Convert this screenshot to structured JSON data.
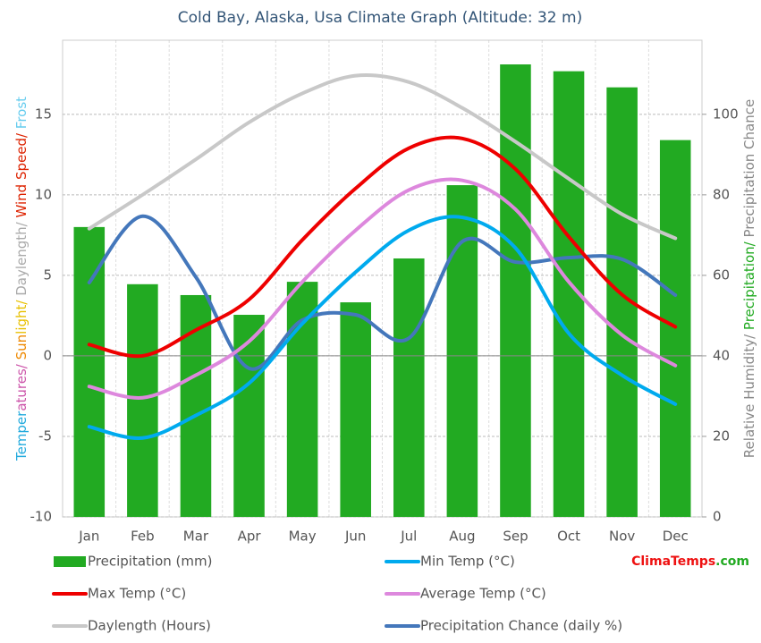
{
  "chart_data": {
    "type": "combo",
    "title": "Cold Bay, Alaska, Usa Climate Graph (Altitude: 32 m)",
    "y_label_parts": [
      {
        "text": "Temper",
        "color": "#22aadd"
      },
      {
        "text": "atures/",
        "color": "#cc55aa"
      },
      {
        "text": " Sun",
        "color": "#ee8800"
      },
      {
        "text": "light/",
        "color": "#e8c000"
      },
      {
        "text": " Daylength/",
        "color": "#aaaaaa"
      },
      {
        "text": " Wind Speed/",
        "color": "#dd2200"
      },
      {
        "text": " Frost",
        "color": "#66ccee"
      }
    ],
    "y2_label_parts": [
      {
        "text": "Relative Humidity/",
        "color": "#888888"
      },
      {
        "text": " Precipitation/",
        "color": "#22aa22"
      },
      {
        "text": " Precipitation Chance",
        "color": "#888888"
      }
    ],
    "categories": [
      "Jan",
      "Feb",
      "Mar",
      "Apr",
      "May",
      "Jun",
      "Jul",
      "Aug",
      "Sep",
      "Oct",
      "Nov",
      "Dec"
    ],
    "ylim": [
      -10,
      19.6
    ],
    "yticks": [
      -10,
      -5,
      0,
      5,
      10,
      15
    ],
    "y2lim": [
      0,
      118.4
    ],
    "y2ticks": [
      0,
      20,
      40,
      60,
      80,
      100
    ],
    "grid": true,
    "series": [
      {
        "name": "Precipitation (mm)",
        "type": "bar",
        "axis": "y2",
        "color": "#22aa22",
        "values": [
          72,
          57.8,
          55.1,
          50.2,
          58.4,
          53.3,
          64.2,
          82.4,
          112.4,
          110.7,
          106.7,
          93.6
        ]
      },
      {
        "name": "Min Temp (°C)",
        "type": "line",
        "axis": "y",
        "color": "#00aaee",
        "values": [
          -4.4,
          -5.1,
          -3.7,
          -1.7,
          2.0,
          5.2,
          7.8,
          8.6,
          6.7,
          1.4,
          -1.2,
          -3.0
        ]
      },
      {
        "name": "Max Temp (°C)",
        "type": "line",
        "axis": "y",
        "color": "#ee0000",
        "values": [
          0.7,
          0,
          1.6,
          3.5,
          7.2,
          10.4,
          12.9,
          13.5,
          11.6,
          7.4,
          3.8,
          1.8
        ]
      },
      {
        "name": "Average Temp (°C)",
        "type": "line",
        "axis": "y",
        "color": "#dd88dd",
        "values": [
          -1.9,
          -2.6,
          -1.2,
          0.9,
          4.6,
          7.8,
          10.3,
          10.9,
          9.1,
          4.6,
          1.3,
          -0.6
        ]
      },
      {
        "name": "Daylength (Hours)",
        "type": "line",
        "axis": "y",
        "color": "#c8c8c8",
        "values": [
          7.9,
          10,
          12.2,
          14.5,
          16.3,
          17.4,
          17.0,
          15.4,
          13.3,
          11,
          8.8,
          7.3
        ]
      },
      {
        "name": "Precipitation Chance (daily %)",
        "type": "line",
        "axis": "y2",
        "color": "#4477bb",
        "values": [
          58.2,
          74.7,
          59.6,
          36.9,
          48.9,
          50.2,
          44.4,
          68.4,
          63.3,
          64.4,
          64,
          55.1
        ]
      }
    ],
    "brand_parts": [
      {
        "text": "Clima",
        "color": "#ee1111"
      },
      {
        "text": "Temps",
        "color": "#ee1111"
      },
      {
        "text": ".com",
        "color": "#22aa22"
      }
    ]
  }
}
